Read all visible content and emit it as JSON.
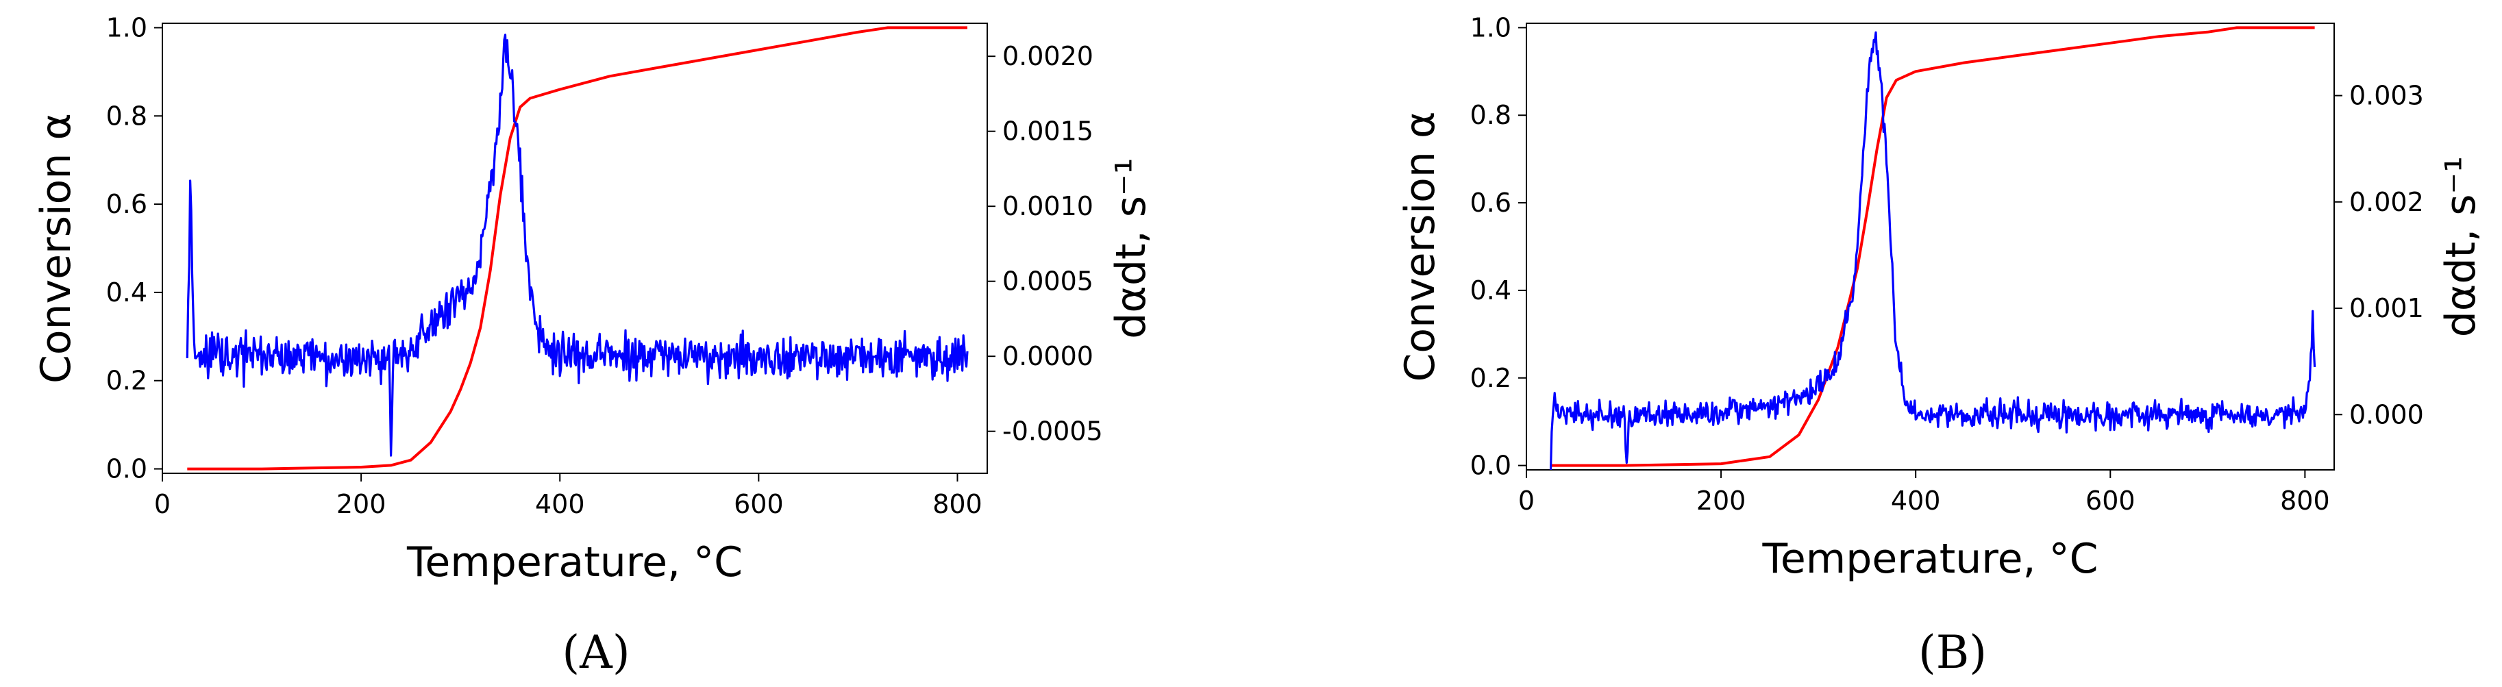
{
  "chart_data": [
    {
      "type": "line",
      "panel_label": "(A)",
      "xlabel": "Temperature, °C",
      "ylabel": "Conversion α",
      "y2label": "dαdt, s⁻¹",
      "xlim": [
        0,
        830
      ],
      "ylim": [
        -0.01,
        1.01
      ],
      "y2lim": [
        -0.00078,
        0.00222
      ],
      "xticks": [
        "0",
        "200",
        "400",
        "600",
        "800"
      ],
      "yticks": [
        "0.0",
        "0.2",
        "0.4",
        "0.6",
        "0.8",
        "1.0"
      ],
      "y2ticks": [
        "-0.0005",
        "0.0000",
        "0.0005",
        "0.0010",
        "0.0015",
        "0.0020"
      ],
      "grid": false,
      "series": [
        {
          "color": "#ff0000",
          "axis": "left",
          "x": [
            25,
            100,
            150,
            200,
            230,
            250,
            270,
            290,
            300,
            310,
            320,
            330,
            340,
            350,
            360,
            370,
            400,
            450,
            500,
            550,
            600,
            650,
            700,
            730,
            780,
            810
          ],
          "y": [
            0.0,
            0.0,
            0.002,
            0.004,
            0.008,
            0.02,
            0.06,
            0.13,
            0.18,
            0.24,
            0.32,
            0.45,
            0.62,
            0.75,
            0.82,
            0.84,
            0.86,
            0.89,
            0.91,
            0.93,
            0.95,
            0.97,
            0.99,
            1.0,
            1.0,
            1.0
          ]
        },
        {
          "color": "#0000ff",
          "axis": "right",
          "kind": "noisy-rate",
          "x": [
            25,
            28,
            32,
            40,
            100,
            200,
            228,
            230,
            232,
            260,
            290,
            310,
            320,
            330,
            340,
            343,
            347,
            350,
            355,
            360,
            370,
            380,
            400,
            500,
            600,
            700,
            800,
            810
          ],
          "y": [
            0.0,
            0.0011,
            0.0,
            0.0,
            0.0,
            0.0,
            0.0,
            -0.0008,
            0.0,
            0.0001,
            0.0003,
            0.00045,
            0.0007,
            0.0011,
            0.0017,
            0.00205,
            0.0021,
            0.0019,
            0.0016,
            0.00125,
            0.0005,
            0.0001,
            0.0,
            0.0,
            0.0,
            0.0,
            0.0,
            0.0
          ],
          "noise_amplitude": 0.00022
        }
      ]
    },
    {
      "type": "line",
      "panel_label": "(B)",
      "xlabel": "Temperature, °C",
      "ylabel": "Conversion α",
      "y2label": "dαdt, s⁻¹",
      "xlim": [
        0,
        830
      ],
      "ylim": [
        -0.01,
        1.01
      ],
      "y2lim": [
        -0.00052,
        0.00368
      ],
      "xticks": [
        "0",
        "200",
        "400",
        "600",
        "800"
      ],
      "yticks": [
        "0.0",
        "0.2",
        "0.4",
        "0.6",
        "0.8",
        "1.0"
      ],
      "y2ticks": [
        "0.000",
        "0.001",
        "0.002",
        "0.003"
      ],
      "grid": false,
      "series": [
        {
          "color": "#ff0000",
          "axis": "left",
          "x": [
            25,
            100,
            200,
            250,
            280,
            300,
            320,
            340,
            350,
            360,
            370,
            380,
            400,
            450,
            500,
            550,
            600,
            650,
            700,
            730,
            780,
            810
          ],
          "y": [
            0.0,
            0.0,
            0.004,
            0.02,
            0.07,
            0.15,
            0.27,
            0.45,
            0.58,
            0.72,
            0.84,
            0.88,
            0.9,
            0.92,
            0.935,
            0.95,
            0.965,
            0.98,
            0.99,
            1.0,
            1.0,
            1.0
          ],
          "noise_amplitude": 0
        },
        {
          "color": "#0000ff",
          "axis": "right",
          "kind": "noisy-rate",
          "x": [
            25,
            28,
            32,
            100,
            103,
            106,
            200,
            260,
            300,
            320,
            335,
            345,
            350,
            355,
            360,
            365,
            370,
            375,
            380,
            390,
            400,
            500,
            600,
            700,
            800,
            805,
            808,
            810
          ],
          "y": [
            -0.0005,
            0.0002,
            0.0,
            0.0,
            -0.0004,
            0.0,
            0.0,
            0.0001,
            0.00025,
            0.0005,
            0.0011,
            0.0022,
            0.003,
            0.0035,
            0.0035,
            0.003,
            0.0024,
            0.0015,
            0.0006,
            0.0001,
            0.0,
            0.0,
            0.0,
            0.0,
            0.0,
            0.0004,
            0.0009,
            0.0004
          ],
          "noise_amplitude": 0.00018
        }
      ]
    }
  ]
}
